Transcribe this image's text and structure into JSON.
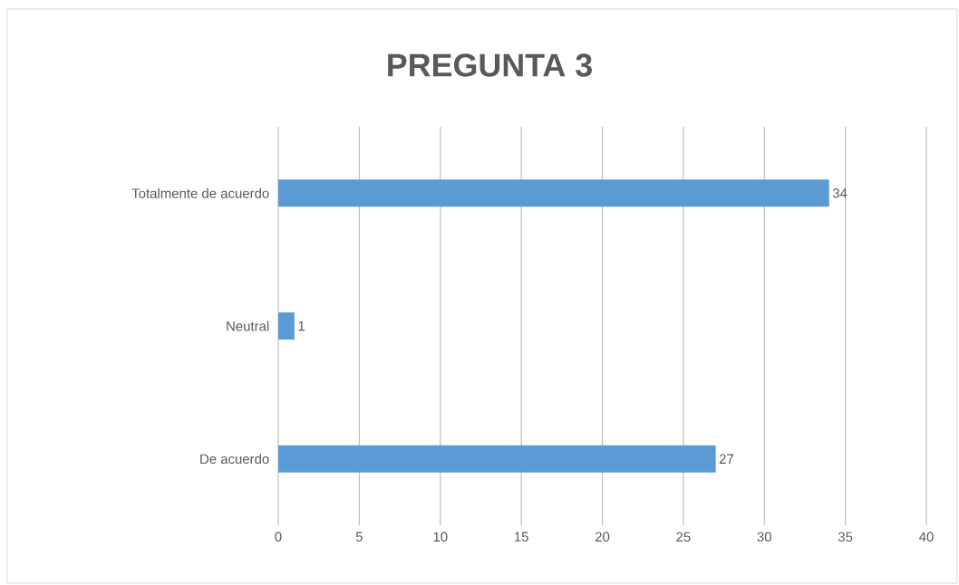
{
  "chart_data": {
    "type": "bar",
    "orientation": "horizontal",
    "title": "PREGUNTA 3",
    "categories": [
      "Totalmente de acuerdo",
      "Neutral",
      "De acuerdo"
    ],
    "values": [
      34,
      1,
      27
    ],
    "color": "#5b9bd5",
    "xlim": [
      0,
      40
    ],
    "xticks": [
      0,
      5,
      10,
      15,
      20,
      25,
      30,
      35,
      40
    ],
    "grid": "x",
    "data_labels": true
  }
}
